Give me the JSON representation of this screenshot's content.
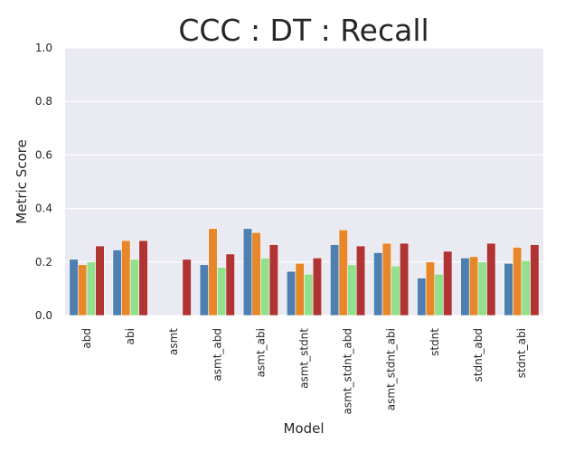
{
  "chart_data": {
    "type": "bar",
    "title": "CCC : DT : Recall",
    "xlabel": "Model",
    "ylabel": "Metric Score",
    "ylim": [
      0.0,
      1.0
    ],
    "yticks": [
      "0.0",
      "0.2",
      "0.4",
      "0.6",
      "0.8",
      "1.0"
    ],
    "grid": true,
    "legend": "none",
    "categories": [
      "abd",
      "abi",
      "asmt",
      "asmt_abd",
      "asmt_abi",
      "asmt_stdnt",
      "asmt_stdnt_abd",
      "asmt_stdnt_abi",
      "stdnt",
      "stdnt_abd",
      "stdnt_abi"
    ],
    "series": [
      {
        "color": "#4d7fb0",
        "values": [
          0.21,
          0.245,
          0.0,
          0.19,
          0.325,
          0.165,
          0.265,
          0.235,
          0.14,
          0.215,
          0.195
        ]
      },
      {
        "color": "#e8862a",
        "values": [
          0.19,
          0.28,
          0.0,
          0.325,
          0.31,
          0.195,
          0.32,
          0.27,
          0.2,
          0.22,
          0.255
        ]
      },
      {
        "color": "#93e08c",
        "values": [
          0.2,
          0.21,
          0.0,
          0.18,
          0.215,
          0.155,
          0.19,
          0.185,
          0.155,
          0.2,
          0.205
        ]
      },
      {
        "color": "#b03434",
        "values": [
          0.26,
          0.28,
          0.21,
          0.23,
          0.265,
          0.215,
          0.26,
          0.27,
          0.24,
          0.27,
          0.265
        ]
      }
    ]
  }
}
